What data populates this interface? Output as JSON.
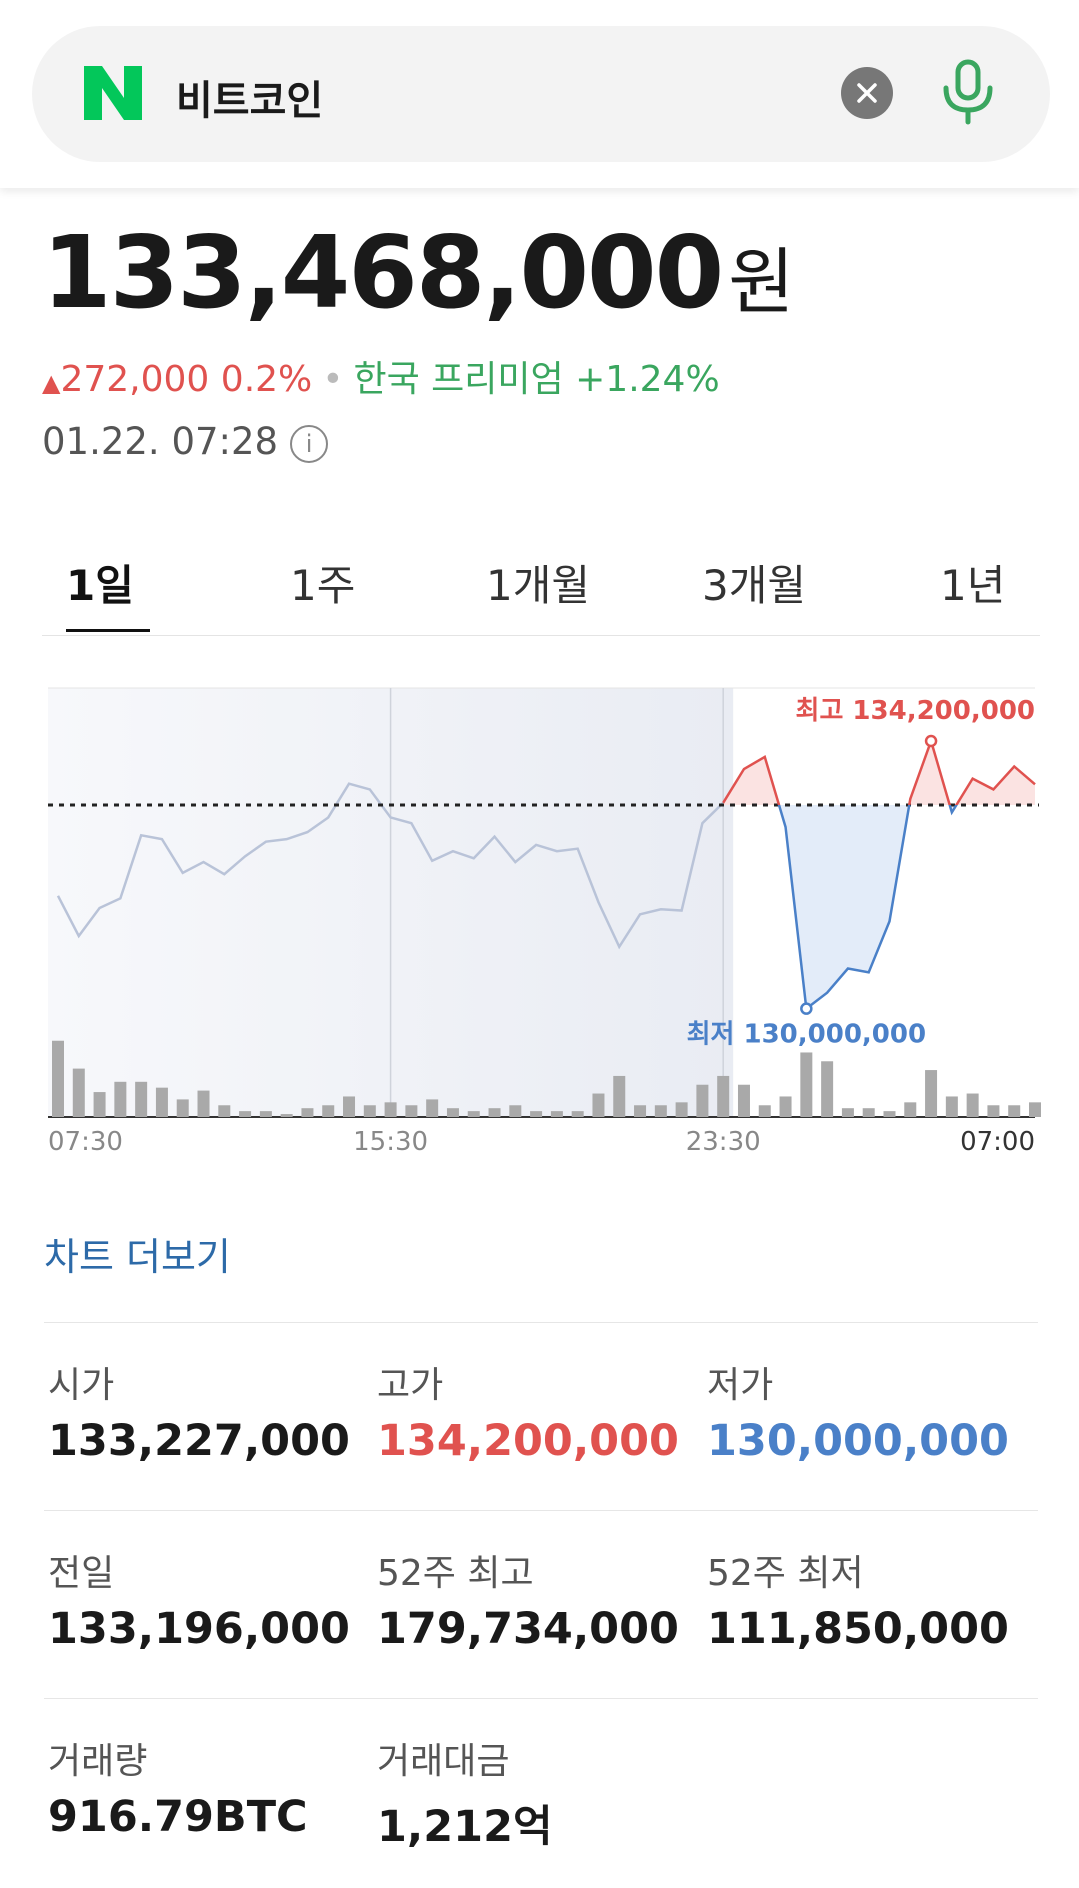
{
  "search": {
    "query": "비트코인"
  },
  "price": {
    "value": "133,468,000",
    "unit": "원"
  },
  "change": {
    "amount": "272,000",
    "percent": "0.2%",
    "premium_label": "한국 프리미엄",
    "premium": "+1.24%"
  },
  "timestamp": "01.22. 07:28",
  "tabs": [
    "1일",
    "1주",
    "1개월",
    "3개월",
    "1년"
  ],
  "chart": {
    "type": "line",
    "x_labels": [
      "07:30",
      "15:30",
      "23:30",
      "07:00"
    ],
    "high_label": "최고 134,200,000",
    "low_label": "최저 130,000,000",
    "ylim": [
      128300000,
      135000000
    ],
    "reference": 133196000,
    "prices": [
      131770000,
      131140000,
      131580000,
      131730000,
      132720000,
      132660000,
      132130000,
      132300000,
      132110000,
      132390000,
      132620000,
      132660000,
      132770000,
      133000000,
      133530000,
      133440000,
      133000000,
      132910000,
      132320000,
      132470000,
      132360000,
      132700000,
      132300000,
      132570000,
      132470000,
      132510000,
      131670000,
      130970000,
      131480000,
      131560000,
      131540000,
      132910000,
      133230000,
      133760000,
      133950000,
      132850000,
      130000000,
      130250000,
      130630000,
      130570000,
      131370000,
      133290000,
      134200000,
      133080000,
      133610000,
      133440000,
      133800000,
      133520000
    ],
    "vlim": [
      0,
      60
    ],
    "volumes": [
      52,
      33,
      17,
      24,
      24,
      20,
      12,
      18,
      8,
      4,
      4,
      2,
      6,
      8,
      14,
      8,
      10,
      8,
      12,
      6,
      4,
      6,
      8,
      4,
      4,
      4,
      16,
      28,
      8,
      8,
      10,
      22,
      28,
      22,
      8,
      14,
      44,
      38,
      6,
      6,
      4,
      10,
      32,
      14,
      16,
      8,
      8,
      10
    ]
  },
  "more_link": "차트 더보기",
  "stats": [
    [
      {
        "label": "시가",
        "value": "133,227,000"
      },
      {
        "label": "고가",
        "value": "134,200,000"
      },
      {
        "label": "저가",
        "value": "130,000,000"
      }
    ],
    [
      {
        "label": "전일",
        "value": "133,196,000"
      },
      {
        "label": "52주 최고",
        "value": "179,734,000"
      },
      {
        "label": "52주 최저",
        "value": "111,850,000"
      }
    ],
    [
      {
        "label": "거래량",
        "value": "916.79BTC"
      },
      {
        "label": "거래대금",
        "value": "1,212억"
      }
    ]
  ]
}
